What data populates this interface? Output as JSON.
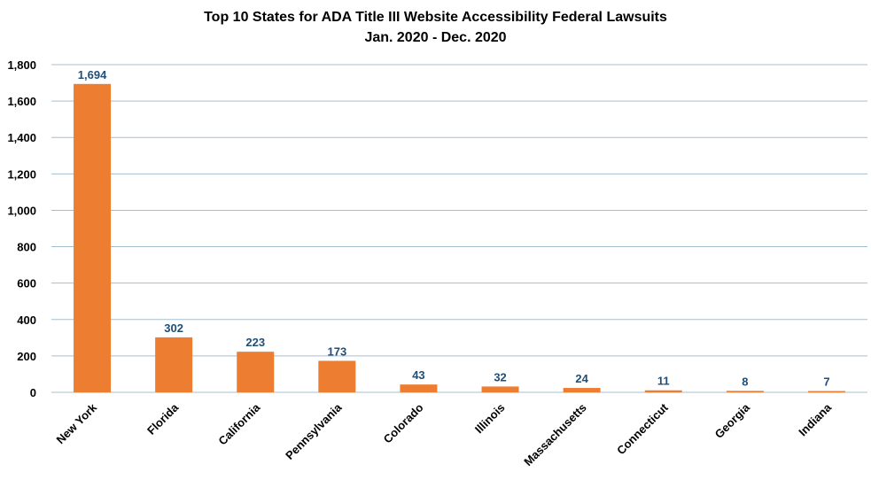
{
  "chart_data": {
    "type": "bar",
    "title": "Top 10 States for ADA Title III Website Accessibility Federal Lawsuits",
    "subtitle": "Jan. 2020 - Dec. 2020",
    "xlabel": "",
    "ylabel": "",
    "categories": [
      "New York",
      "Florida",
      "California",
      "Pennsylvania",
      "Colorado",
      "Illinois",
      "Massachusetts",
      "Connecticut",
      "Georgia",
      "Indiana"
    ],
    "values": [
      1694,
      302,
      223,
      173,
      43,
      32,
      24,
      11,
      8,
      7
    ],
    "data_labels": [
      "1,694",
      "302",
      "223",
      "173",
      "43",
      "32",
      "24",
      "11",
      "8",
      "7"
    ],
    "ylim": [
      0,
      1800
    ],
    "yticks": [
      0,
      200,
      400,
      600,
      800,
      1000,
      1200,
      1400,
      1600,
      1800
    ],
    "ytick_labels": [
      "0",
      "200",
      "400",
      "600",
      "800",
      "1,000",
      "1,200",
      "1,400",
      "1,600",
      "1,800"
    ],
    "grid": true,
    "legend": "none",
    "bar_color": "#ed7d31",
    "data_label_color": "#1f4e79",
    "grid_color": "#a6bfcf"
  }
}
